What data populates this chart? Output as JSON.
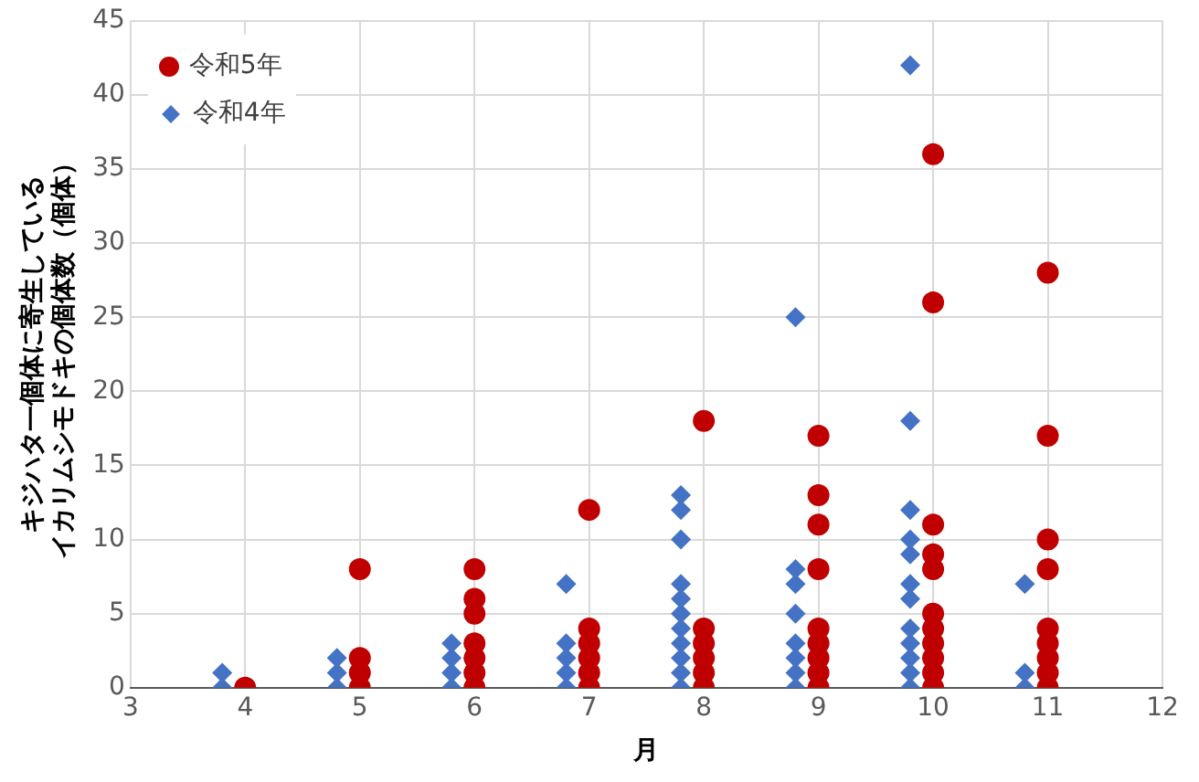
{
  "chart_data": {
    "type": "scatter",
    "xlabel": "月",
    "ylabel": "キジハタ一個体に寄生しているイカリムシモドキの個体数（個体）",
    "xlim": [
      3,
      12
    ],
    "xticks": [
      3,
      4,
      5,
      6,
      7,
      8,
      9,
      10,
      11,
      12
    ],
    "ylim": [
      0,
      45
    ],
    "yticks": [
      0,
      5,
      10,
      15,
      20,
      25,
      30,
      35,
      40,
      45
    ],
    "grid": true,
    "legend": "top left",
    "series": [
      {
        "name": "令和5年",
        "color": "#c00000",
        "marker": "circle",
        "x": [
          4,
          5,
          5,
          5,
          5,
          6,
          6,
          6,
          6,
          6,
          6,
          6,
          7,
          7,
          7,
          7,
          7,
          7,
          8,
          8,
          8,
          8,
          8,
          8,
          9,
          9,
          9,
          9,
          9,
          9,
          9,
          9,
          9,
          10,
          10,
          10,
          10,
          10,
          10,
          10,
          10,
          10,
          10,
          10,
          11,
          11,
          11,
          11,
          11,
          11,
          11,
          11,
          11
        ],
        "values": [
          0,
          0,
          1,
          2,
          8,
          0,
          1,
          2,
          3,
          5,
          6,
          8,
          0,
          1,
          2,
          3,
          4,
          12,
          0,
          1,
          2,
          3,
          4,
          18,
          0,
          1,
          2,
          3,
          4,
          8,
          11,
          13,
          17,
          0,
          1,
          2,
          3,
          4,
          5,
          8,
          9,
          11,
          26,
          36,
          0,
          1,
          2,
          3,
          4,
          8,
          10,
          17,
          28
        ]
      },
      {
        "name": "令和4年",
        "color": "#4472c4",
        "marker": "diamond",
        "x": [
          3.8,
          3.8,
          4.8,
          4.8,
          4.8,
          5.8,
          5.8,
          5.8,
          5.8,
          6.8,
          6.8,
          6.8,
          6.8,
          6.8,
          7.8,
          7.8,
          7.8,
          7.8,
          7.8,
          7.8,
          7.8,
          7.8,
          7.8,
          7.8,
          7.8,
          8.8,
          8.8,
          8.8,
          8.8,
          8.8,
          8.8,
          8.8,
          8.8,
          9.8,
          9.8,
          9.8,
          9.8,
          9.8,
          9.8,
          9.8,
          9.8,
          9.8,
          9.8,
          9.8,
          9.8,
          10.8,
          10.8,
          10.8
        ],
        "values": [
          0,
          1,
          0,
          1,
          2,
          0,
          1,
          2,
          3,
          0,
          1,
          2,
          3,
          7,
          0,
          1,
          2,
          3,
          4,
          5,
          6,
          7,
          10,
          12,
          13,
          0,
          1,
          2,
          3,
          5,
          7,
          8,
          25,
          0,
          1,
          2,
          3,
          4,
          6,
          7,
          9,
          10,
          12,
          18,
          42,
          0,
          1,
          7
        ]
      }
    ]
  }
}
